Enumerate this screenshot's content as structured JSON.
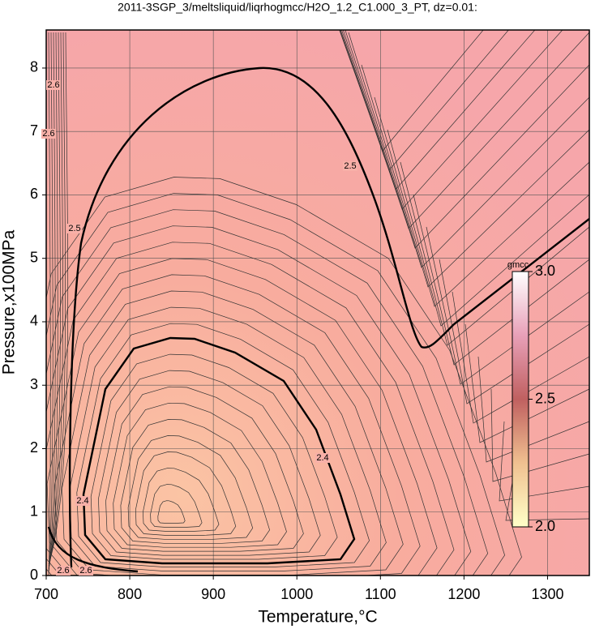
{
  "chart_data": {
    "type": "contour",
    "title": "2011-3SGP_3/meltsliquid/liqrhogmcc/H2O_1.2_C1.000_3_PT, dz=0.01:",
    "x_label": "Temperature,°C",
    "y_label": "Pressure,x100MPa",
    "xlim": [
      700,
      1350
    ],
    "ylim": [
      0,
      8.6
    ],
    "xticks": [
      700,
      800,
      900,
      1000,
      1100,
      1200,
      1300
    ],
    "yticks": [
      0,
      1,
      2,
      3,
      4,
      5,
      6,
      7,
      8
    ],
    "grid": true,
    "contour_labels": [
      2.6,
      2.6,
      2.6,
      2.6,
      2.5,
      2.5,
      2.4,
      2.4
    ],
    "colorbar": {
      "label": "gmcc",
      "lim": [
        2.0,
        3.0
      ],
      "ticks": [
        {
          "value": 2.0,
          "label": "2.0"
        },
        {
          "value": 2.5,
          "label": "2.5"
        },
        {
          "value": 3.0,
          "label": "3.0"
        }
      ],
      "colors": [
        "#ffffc8",
        "#f0c090",
        "#c06060",
        "#e8a0b8",
        "#ffffff"
      ]
    }
  }
}
